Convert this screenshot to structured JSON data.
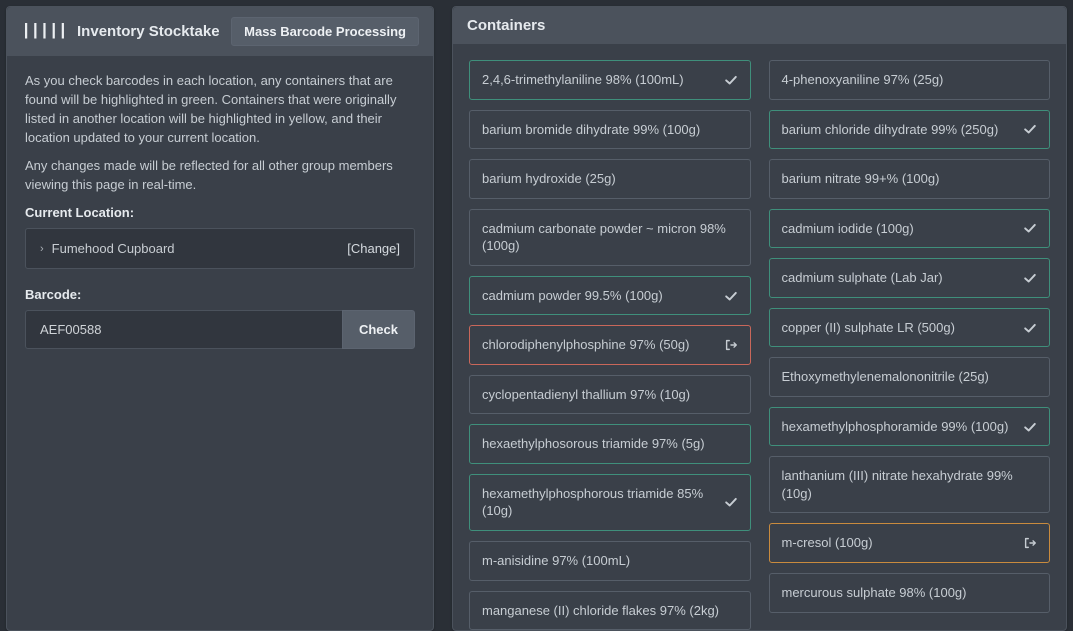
{
  "left": {
    "header_title": "Inventory Stocktake",
    "mass_button_label": "Mass Barcode Processing",
    "intro_1": "As you check barcodes in each location, any containers that are found will be highlighted in green. Containers that were originally listed in another location will be highlighted in yellow, and their location updated to your current location.",
    "intro_2": "Any changes made will be reflected for all other group members viewing this page in real-time.",
    "location_label": "Current Location:",
    "location_name": "Fumehood Cupboard",
    "location_change": "[Change]",
    "barcode_label": "Barcode:",
    "barcode_value": "AEF00588",
    "check_label": "Check"
  },
  "right": {
    "header_title": "Containers"
  },
  "containers": {
    "colA": [
      {
        "name": "2,4,6-trimethylaniline 98% (100mL)",
        "state": "found",
        "icon": "check"
      },
      {
        "name": "barium bromide dihydrate 99% (100g)",
        "state": "normal",
        "icon": ""
      },
      {
        "name": "barium hydroxide (25g)",
        "state": "normal",
        "icon": ""
      },
      {
        "name": "cadmium carbonate powder ~ micron 98% (100g)",
        "state": "normal",
        "icon": ""
      },
      {
        "name": "cadmium powder 99.5% (100g)",
        "state": "found",
        "icon": "check"
      },
      {
        "name": "chlorodiphenylphosphine 97% (50g)",
        "state": "out",
        "icon": "out"
      },
      {
        "name": "cyclopentadienyl thallium 97% (10g)",
        "state": "normal",
        "icon": ""
      },
      {
        "name": "hexaethylphosorous triamide 97% (5g)",
        "state": "found",
        "icon": ""
      },
      {
        "name": "hexamethylphosphorous triamide 85% (10g)",
        "state": "found",
        "icon": "check"
      },
      {
        "name": "m-anisidine 97% (100mL)",
        "state": "normal",
        "icon": ""
      },
      {
        "name": "manganese (II) chloride flakes 97% (2kg)",
        "state": "normal",
        "icon": ""
      }
    ],
    "colB": [
      {
        "name": "4-phenoxyaniline 97% (25g)",
        "state": "normal",
        "icon": ""
      },
      {
        "name": "barium chloride dihydrate 99% (250g)",
        "state": "found",
        "icon": "check"
      },
      {
        "name": "barium nitrate 99+% (100g)",
        "state": "normal",
        "icon": ""
      },
      {
        "name": "cadmium iodide (100g)",
        "state": "found",
        "icon": "check"
      },
      {
        "name": "cadmium sulphate (Lab Jar)",
        "state": "found",
        "icon": "check"
      },
      {
        "name": "copper (II) sulphate LR (500g)",
        "state": "found",
        "icon": "check"
      },
      {
        "name": "Ethoxymethylenemalononitrile (25g)",
        "state": "normal",
        "icon": ""
      },
      {
        "name": "hexamethylphosphoramide 99% (100g)",
        "state": "found",
        "icon": "check"
      },
      {
        "name": "lanthanium (III) nitrate hexahydrate 99% (10g)",
        "state": "normal",
        "icon": ""
      },
      {
        "name": "m-cresol (100g)",
        "state": "moved",
        "icon": "out"
      },
      {
        "name": "mercurous sulphate 98% (100g)",
        "state": "normal",
        "icon": ""
      }
    ]
  },
  "colors": {
    "bg": "#2a2f36",
    "panel": "#3a4049",
    "header": "#4b525c",
    "border_default": "#565e69",
    "border_found": "#3f8f7b",
    "border_moved": "#c98b3e",
    "border_out": "#c9675a",
    "text": "#d0d4d8"
  }
}
